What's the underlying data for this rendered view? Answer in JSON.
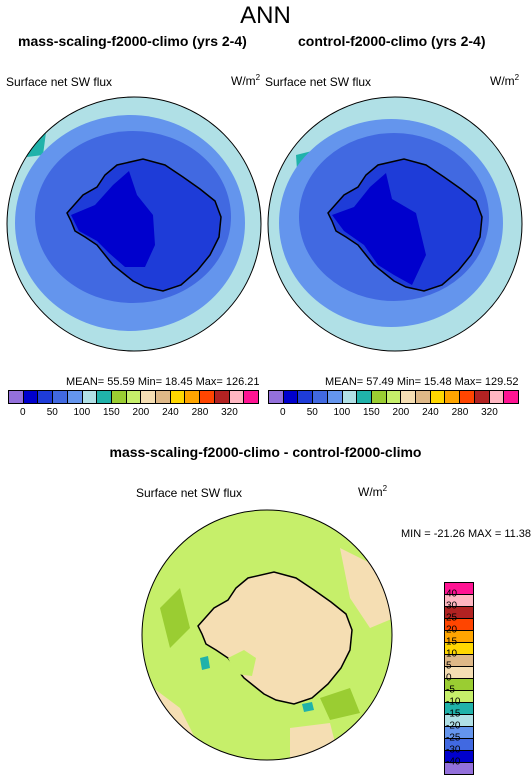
{
  "title": "ANN",
  "panel_left": {
    "title": "mass-scaling-f2000-climo (yrs 2-4)",
    "variable": "Surface net SW flux",
    "units": "W/m",
    "units_sup": "2",
    "stats": "MEAN=  55.59  Min=  18.45  Max= 126.21"
  },
  "panel_right": {
    "title": "control-f2000-climo (yrs 2-4)",
    "variable": "Surface net SW flux",
    "units": "W/m",
    "units_sup": "2",
    "stats": "MEAN=  57.49  Min=  15.48  Max= 129.52"
  },
  "panel_diff": {
    "title": "mass-scaling-f2000-climo - control-f2000-climo",
    "variable": "Surface net SW flux",
    "units": "W/m",
    "units_sup": "2",
    "stats": "MIN = -21.26 MAX =  11.38"
  },
  "colorbar_main": {
    "colors": [
      "#9370db",
      "#0000cd",
      "#1e3cd8",
      "#4169e1",
      "#6495ed",
      "#b0e0e6",
      "#20b2aa",
      "#9acd32",
      "#c6ef6a",
      "#f5deb3",
      "#deb887",
      "#ffd700",
      "#ffa500",
      "#ff4500",
      "#b22222",
      "#ffb6c1",
      "#ff1493"
    ],
    "tick_labels": [
      "0",
      "50",
      "100",
      "150",
      "200",
      "240",
      "280",
      "320"
    ]
  },
  "colorbar_diff": {
    "colors": [
      "#ff1493",
      "#ffb6c1",
      "#b22222",
      "#ff4500",
      "#ffa500",
      "#ffd700",
      "#deb887",
      "#f5deb3",
      "#9acd32",
      "#c6ef6a",
      "#20b2aa",
      "#b0e0e6",
      "#6495ed",
      "#4169e1",
      "#0000cd",
      "#9370db"
    ],
    "tick_labels": [
      "40",
      "30",
      "25",
      "20",
      "15",
      "10",
      "5",
      "0",
      "-5",
      "-10",
      "-15",
      "-20",
      "-25",
      "-30",
      "-40"
    ]
  },
  "map_colors": {
    "ocean_far": "#b0e0e6",
    "ocean_mid": "#6495ed",
    "ocean_near": "#4169e1",
    "continent": "#1e3cd8",
    "interior": "#0000cd",
    "teal": "#20b2aa",
    "diff_land": "#f5deb3",
    "diff_ocean": "#c6ef6a",
    "diff_ocean2": "#9acd32",
    "diff_tan": "#deb887"
  }
}
